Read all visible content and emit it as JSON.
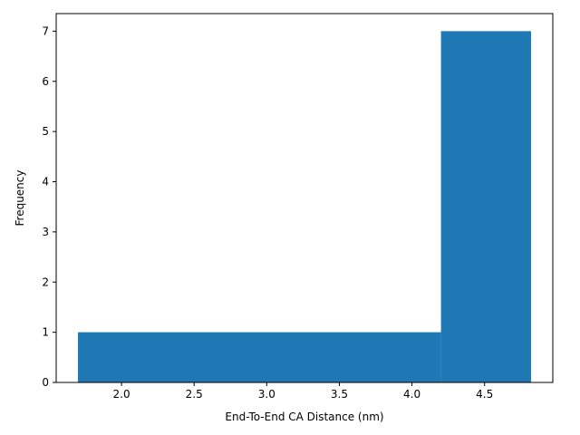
{
  "chart_data": {
    "type": "bar",
    "subtype": "histogram",
    "title": "",
    "xlabel": "End-To-End CA Distance (nm)",
    "ylabel": "Frequency",
    "bins": [
      {
        "x0": 1.7,
        "x1": 4.2,
        "count": 1
      },
      {
        "x0": 4.2,
        "x1": 4.82,
        "count": 7
      }
    ],
    "xlim": [
      1.55,
      4.97
    ],
    "ylim": [
      0,
      7.35
    ],
    "xticks": [
      {
        "value": 2.0,
        "label": "2.0"
      },
      {
        "value": 2.5,
        "label": "2.5"
      },
      {
        "value": 3.0,
        "label": "3.0"
      },
      {
        "value": 3.5,
        "label": "3.5"
      },
      {
        "value": 4.0,
        "label": "4.0"
      },
      {
        "value": 4.5,
        "label": "4.5"
      }
    ],
    "yticks": [
      {
        "value": 0,
        "label": "0"
      },
      {
        "value": 1,
        "label": "1"
      },
      {
        "value": 2,
        "label": "2"
      },
      {
        "value": 3,
        "label": "3"
      },
      {
        "value": 4,
        "label": "4"
      },
      {
        "value": 5,
        "label": "5"
      },
      {
        "value": 6,
        "label": "6"
      },
      {
        "value": 7,
        "label": "7"
      }
    ],
    "grid": false,
    "legend": "none",
    "bar_color": "#1f77b4"
  }
}
